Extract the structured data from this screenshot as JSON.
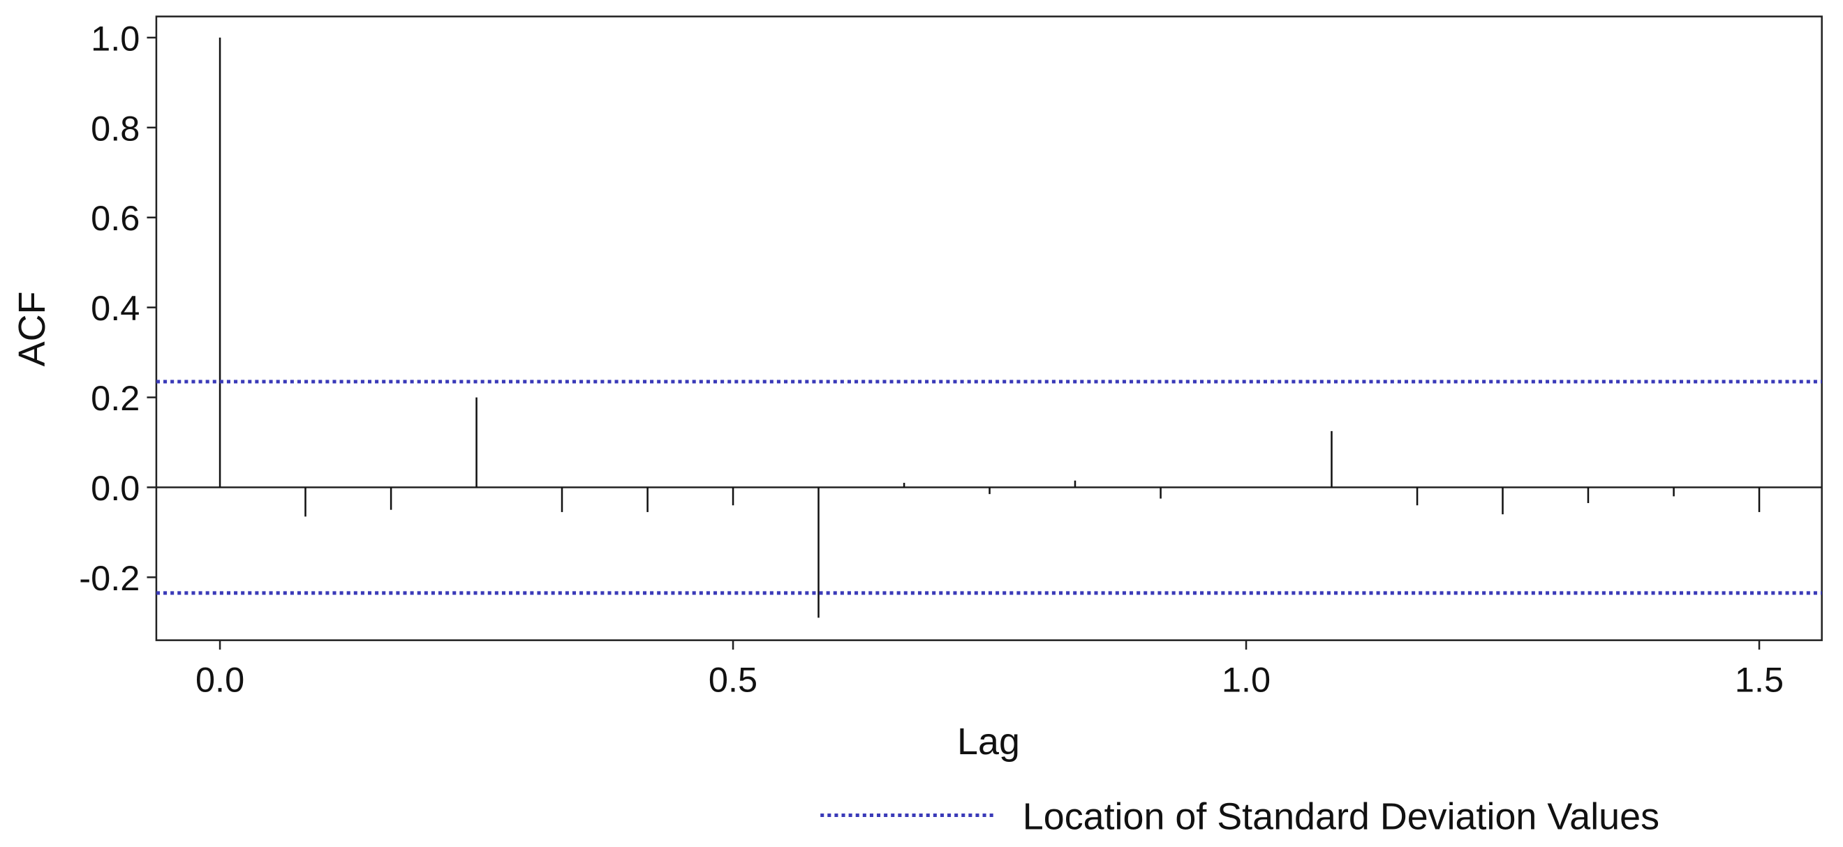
{
  "chart_data": {
    "type": "stem",
    "y_label": "ACF",
    "x_label": "Lag",
    "x": [
      0,
      0.0833,
      0.1667,
      0.25,
      0.3333,
      0.4167,
      0.5,
      0.5833,
      0.6667,
      0.75,
      0.8333,
      0.9167,
      1.0833,
      1.1667,
      1.25,
      1.3333,
      1.4167,
      1.5
    ],
    "values": [
      1.0,
      -0.065,
      -0.05,
      0.2,
      -0.055,
      -0.055,
      -0.04,
      -0.29,
      0.01,
      -0.015,
      0.015,
      -0.025,
      0.125,
      -0.04,
      -0.06,
      -0.035,
      -0.02,
      -0.055
    ],
    "color": "#111111",
    "reference_lines": {
      "name": "Location of Standard Deviation Values",
      "color": "#3a3ab8",
      "values": [
        0.235,
        -0.235
      ]
    },
    "xlim": [
      -0.062,
      1.561
    ],
    "ylim": [
      -0.34,
      1.047
    ],
    "xticks": [
      {
        "value": 0,
        "label": "0.0"
      },
      0.5,
      {
        "value": 1,
        "label": "1.0"
      },
      1.5
    ],
    "yticks": [
      {
        "value": -0.2,
        "label": "-0.2"
      },
      {
        "value": 0,
        "label": "0.0"
      },
      0.2,
      0.4,
      0.6,
      0.8,
      {
        "value": 1,
        "label": "1.0"
      }
    ],
    "legend": "bottom-right"
  }
}
